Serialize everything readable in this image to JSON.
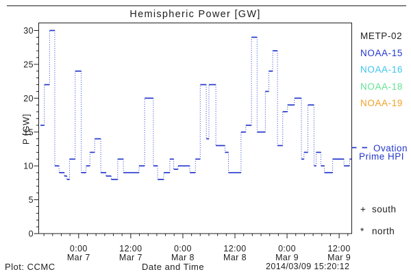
{
  "page": {
    "credit": "Plot: CCMC",
    "timestamp": "2014/03/09 15:20:12"
  },
  "legend": {
    "satellites": [
      {
        "label": "METP-02",
        "color": "#1d1d1d"
      },
      {
        "label": "NOAA-15",
        "color": "#2336cc"
      },
      {
        "label": "NOAA-16",
        "color": "#3fc3ee"
      },
      {
        "label": "NOAA-18",
        "color": "#63e392"
      },
      {
        "label": "NOAA-19",
        "color": "#f0a028"
      }
    ],
    "model_line_label_1": "Ovation",
    "model_line_label_2": "Prime HPI",
    "markers": [
      {
        "symbol": "+",
        "label": "south"
      },
      {
        "symbol": "*",
        "label": "north"
      }
    ]
  },
  "chart_data": {
    "type": "line",
    "style": "step",
    "title": "Hemispheric Power [GW]",
    "xlabel": "Date and Time",
    "ylabel": "P [GW]",
    "series_name": "Ovation Prime HPI",
    "line_color": "#2336cc",
    "grid": false,
    "legend_position": "right",
    "ylim": [
      0,
      30
    ],
    "y_major_ticks": [
      0,
      5,
      10,
      15,
      20,
      25,
      30
    ],
    "y_minor_step": 1,
    "x_units": "hours since Mar 6 00:00 (read from axis labels)",
    "x_range_hours": [
      14.8,
      86.9
    ],
    "x_minor_step_hours": 2,
    "x_major_ticks": [
      {
        "hour": 24,
        "time": "0:00",
        "date": "Mar 7"
      },
      {
        "hour": 36,
        "time": "12:00",
        "date": "Mar 7"
      },
      {
        "hour": 48,
        "time": "0:00",
        "date": "Mar 8"
      },
      {
        "hour": 60,
        "time": "12:00",
        "date": "Mar 8"
      },
      {
        "hour": 72,
        "time": "0:00",
        "date": "Mar 9"
      },
      {
        "hour": 84,
        "time": "12:00",
        "date": "Mar 9"
      }
    ],
    "steps": [
      [
        15.2,
        16
      ],
      [
        16.1,
        22
      ],
      [
        17.3,
        30
      ],
      [
        18.5,
        10
      ],
      [
        19.5,
        9
      ],
      [
        20.7,
        8.5
      ],
      [
        21.3,
        8
      ],
      [
        21.9,
        11
      ],
      [
        23.2,
        24
      ],
      [
        24.6,
        9
      ],
      [
        25.7,
        10
      ],
      [
        26.6,
        12
      ],
      [
        27.7,
        14
      ],
      [
        29.1,
        9
      ],
      [
        30.3,
        8.5
      ],
      [
        31.5,
        8
      ],
      [
        33.0,
        11
      ],
      [
        34.3,
        9
      ],
      [
        37.9,
        10
      ],
      [
        39.2,
        20
      ],
      [
        41.2,
        10
      ],
      [
        42.2,
        8
      ],
      [
        43.6,
        9
      ],
      [
        45.0,
        11
      ],
      [
        45.9,
        9.5
      ],
      [
        46.9,
        10
      ],
      [
        49.6,
        9
      ],
      [
        50.9,
        11
      ],
      [
        52.0,
        22
      ],
      [
        53.4,
        14
      ],
      [
        54.0,
        22
      ],
      [
        55.6,
        13
      ],
      [
        57.7,
        12
      ],
      [
        58.5,
        9
      ],
      [
        61.4,
        15
      ],
      [
        62.5,
        16
      ],
      [
        63.8,
        29
      ],
      [
        65.1,
        15
      ],
      [
        67.0,
        21
      ],
      [
        67.8,
        24
      ],
      [
        68.7,
        27
      ],
      [
        69.8,
        13
      ],
      [
        71.0,
        18
      ],
      [
        72.1,
        19
      ],
      [
        73.7,
        20
      ],
      [
        75.3,
        11
      ],
      [
        75.9,
        12
      ],
      [
        76.8,
        19
      ],
      [
        78.2,
        10
      ],
      [
        78.7,
        12
      ],
      [
        79.8,
        10
      ],
      [
        80.6,
        9
      ],
      [
        82.5,
        11
      ],
      [
        85.1,
        10
      ],
      [
        86.4,
        11
      ]
    ],
    "end_hour": 86.8
  }
}
